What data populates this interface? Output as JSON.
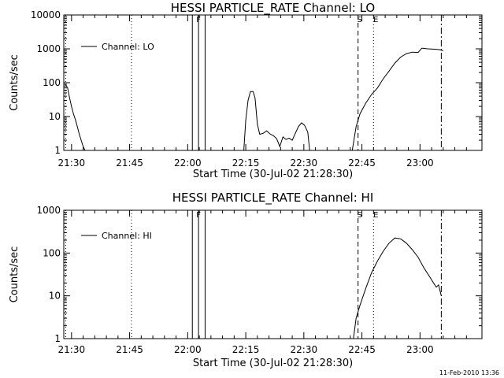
{
  "footer": {
    "timestamp": "11-Feb-2010 13:36"
  },
  "chart_data": [
    {
      "type": "line",
      "title": "HESSI PARTICLE_RATE Channel: LO",
      "xlabel": "Start Time (30-Jul-02 21:28:30)",
      "ylabel": "Counts/sec",
      "y_scale": "log",
      "ylim": [
        1,
        10000
      ],
      "xlim_minutes": [
        -2,
        106
      ],
      "x_ticks": [
        {
          "m": 0,
          "label": "21:30"
        },
        {
          "m": 15,
          "label": "21:45"
        },
        {
          "m": 30,
          "label": "22:00"
        },
        {
          "m": 45,
          "label": "22:15"
        },
        {
          "m": 60,
          "label": "22:30"
        },
        {
          "m": 75,
          "label": "22:45"
        },
        {
          "m": 90,
          "label": "23:00"
        }
      ],
      "y_ticks": [
        {
          "v": 1,
          "label": "1"
        },
        {
          "v": 10,
          "label": "10"
        },
        {
          "v": 100,
          "label": "100"
        },
        {
          "v": 1000,
          "label": "1000"
        },
        {
          "v": 10000,
          "label": "10000"
        }
      ],
      "legend": {
        "label": "Channel: LO",
        "position": "top-left"
      },
      "markers": {
        "dotted_lines": [
          -1.5,
          15.5,
          78
        ],
        "solid_lines": [
          31.2,
          32.8,
          34.5
        ],
        "dashed_line": 74,
        "dashdot_line": 95.5,
        "F": "F",
        "S": "S",
        "E": "E"
      },
      "series": [
        {
          "name": "Channel: LO",
          "segments": [
            [
              [
                -1.6,
                90
              ],
              [
                -1,
                70
              ],
              [
                -0.5,
                35
              ],
              [
                0,
                20
              ],
              [
                0.5,
                12
              ],
              [
                1,
                8
              ],
              [
                1.5,
                5
              ],
              [
                2,
                3
              ],
              [
                2.5,
                2
              ],
              [
                3,
                1.3
              ],
              [
                3.5,
                1
              ]
            ],
            [
              [
                44.5,
                1
              ],
              [
                45,
                8
              ],
              [
                45.6,
                30
              ],
              [
                46.2,
                55
              ],
              [
                46.9,
                55
              ],
              [
                47.4,
                35
              ],
              [
                48,
                6
              ],
              [
                48.6,
                3
              ],
              [
                49.5,
                3.2
              ],
              [
                50.4,
                3.8
              ],
              [
                51.2,
                3.1
              ],
              [
                52.2,
                2.7
              ],
              [
                53,
                2.2
              ],
              [
                53.8,
                1.3
              ],
              [
                54.6,
                2.5
              ],
              [
                55.4,
                2.1
              ],
              [
                56.2,
                2.3
              ],
              [
                57,
                2
              ],
              [
                57.8,
                3.2
              ],
              [
                58.6,
                5
              ],
              [
                59.4,
                6.5
              ],
              [
                60.2,
                5.5
              ],
              [
                61,
                3.5
              ],
              [
                61.5,
                1
              ]
            ],
            [
              [
                72.5,
                1
              ],
              [
                73.5,
                5
              ],
              [
                74.5,
                12
              ],
              [
                76,
                25
              ],
              [
                77.5,
                45
              ],
              [
                79,
                70
              ],
              [
                80.5,
                130
              ],
              [
                82,
                220
              ],
              [
                83.5,
                380
              ],
              [
                85,
                570
              ],
              [
                86.5,
                720
              ],
              [
                88,
                800
              ],
              [
                89.5,
                780
              ],
              [
                90.5,
                1050
              ],
              [
                92,
                1000
              ],
              [
                93.5,
                980
              ],
              [
                95,
                950
              ],
              [
                96,
                880
              ]
            ]
          ]
        }
      ]
    },
    {
      "type": "line",
      "title": "HESSI PARTICLE_RATE Channel: HI",
      "xlabel": "Start Time (30-Jul-02 21:28:30)",
      "ylabel": "Counts/sec",
      "y_scale": "log",
      "ylim": [
        1,
        1000
      ],
      "xlim_minutes": [
        -2,
        106
      ],
      "x_ticks": [
        {
          "m": 0,
          "label": "21:30"
        },
        {
          "m": 15,
          "label": "21:45"
        },
        {
          "m": 30,
          "label": "22:00"
        },
        {
          "m": 45,
          "label": "22:15"
        },
        {
          "m": 60,
          "label": "22:30"
        },
        {
          "m": 75,
          "label": "22:45"
        },
        {
          "m": 90,
          "label": "23:00"
        }
      ],
      "y_ticks": [
        {
          "v": 1,
          "label": "1"
        },
        {
          "v": 10,
          "label": "10"
        },
        {
          "v": 100,
          "label": "100"
        },
        {
          "v": 1000,
          "label": "1000"
        }
      ],
      "legend": {
        "label": "Channel: HI",
        "position": "top-left"
      },
      "markers": {
        "dotted_lines": [
          -1.5,
          15.5,
          78
        ],
        "solid_lines": [
          31.2,
          32.8,
          34.5
        ],
        "dashed_line": 74,
        "dashdot_line": 95.5,
        "F": "F",
        "S": "S",
        "E": "E"
      },
      "series": [
        {
          "name": "Channel: HI",
          "segments": [
            [
              [
                72.8,
                1
              ],
              [
                73.5,
                3
              ],
              [
                74.5,
                6
              ],
              [
                76,
                15
              ],
              [
                77.5,
                35
              ],
              [
                79,
                65
              ],
              [
                80.5,
                110
              ],
              [
                82,
                170
              ],
              [
                83.5,
                225
              ],
              [
                85,
                215
              ],
              [
                86.5,
                170
              ],
              [
                88,
                120
              ],
              [
                89.5,
                80
              ],
              [
                91,
                45
              ],
              [
                92.5,
                28
              ],
              [
                93.5,
                20
              ],
              [
                94.2,
                16
              ],
              [
                94.8,
                18
              ],
              [
                95.5,
                10
              ]
            ]
          ]
        }
      ]
    }
  ]
}
